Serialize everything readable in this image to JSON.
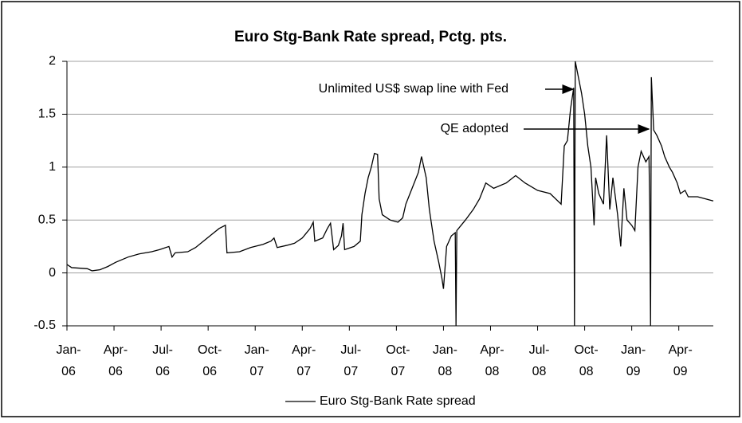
{
  "chart_data": {
    "type": "line",
    "title": "Euro Stg-Bank Rate spread, Pctg. pts.",
    "x": [
      0,
      0.3,
      1.3,
      1.6,
      2.1,
      2.6,
      3.1,
      3.9,
      4.6,
      5.4,
      5.9,
      6.5,
      6.7,
      6.9,
      7.7,
      8.2,
      8.7,
      9.2,
      9.7,
      10.1,
      10.2,
      11.0,
      11.7,
      12.5,
      13.0,
      13.2,
      13.4,
      14.0,
      14.5,
      15.0,
      15.5,
      15.7,
      15.8,
      16.3,
      16.6,
      16.8,
      17.0,
      17.3,
      17.5,
      17.6,
      17.7,
      18.3,
      18.7,
      18.8,
      19.0,
      19.2,
      19.4,
      19.6,
      19.8,
      19.9,
      20.1,
      20.6,
      21.1,
      21.4,
      21.6,
      22.0,
      22.4,
      22.6,
      22.9,
      23.1,
      23.4,
      23.7,
      23.9,
      24.0,
      24.2,
      24.5,
      24.75,
      24.8,
      24.85,
      25.4,
      25.9,
      26.3,
      26.7,
      27.2,
      28.0,
      28.6,
      29.2,
      30.0,
      30.8,
      31.5,
      31.7,
      31.9,
      32.1,
      32.3,
      32.35,
      32.4,
      32.6,
      32.8,
      33.0,
      33.2,
      33.4,
      33.6,
      33.7,
      33.9,
      34.2,
      34.4,
      34.6,
      34.8,
      35.1,
      35.3,
      35.5,
      35.7,
      36.0,
      36.2,
      36.4,
      36.6,
      36.9,
      37.1,
      37.15,
      37.2,
      37.25,
      37.4,
      37.6,
      37.9,
      38.1,
      38.4,
      38.6,
      38.9,
      39.1,
      39.4,
      39.6,
      40.2,
      40.7,
      41.2
    ],
    "series": [
      {
        "name": "Euro Stg-Bank Rate spread",
        "color": "#000000",
        "values": [
          0.08,
          0.05,
          0.04,
          0.02,
          0.03,
          0.06,
          0.1,
          0.15,
          0.18,
          0.2,
          0.22,
          0.25,
          0.15,
          0.19,
          0.2,
          0.24,
          0.3,
          0.36,
          0.42,
          0.45,
          0.19,
          0.2,
          0.24,
          0.27,
          0.3,
          0.33,
          0.24,
          0.26,
          0.28,
          0.33,
          0.42,
          0.48,
          0.3,
          0.33,
          0.42,
          0.47,
          0.22,
          0.26,
          0.35,
          0.47,
          0.22,
          0.25,
          0.3,
          0.55,
          0.75,
          0.9,
          1.0,
          1.13,
          1.12,
          0.7,
          0.55,
          0.5,
          0.48,
          0.52,
          0.65,
          0.8,
          0.95,
          1.1,
          0.9,
          0.6,
          0.3,
          0.1,
          -0.05,
          -0.15,
          0.25,
          0.35,
          0.38,
          -0.5,
          0.4,
          0.5,
          0.6,
          0.7,
          0.85,
          0.8,
          0.85,
          0.92,
          0.85,
          0.78,
          0.75,
          0.65,
          1.2,
          1.25,
          1.55,
          1.75,
          -0.5,
          2.0,
          1.85,
          1.7,
          1.5,
          1.2,
          1.0,
          0.45,
          0.9,
          0.75,
          0.65,
          1.3,
          0.6,
          0.9,
          0.55,
          0.25,
          0.8,
          0.5,
          0.45,
          0.4,
          1.0,
          1.15,
          1.05,
          1.1,
          0.6,
          -0.5,
          1.85,
          1.35,
          1.3,
          1.2,
          1.1,
          1.0,
          0.95,
          0.85,
          0.75,
          0.78,
          0.72,
          0.72,
          0.7,
          0.68
        ]
      }
    ],
    "xlim": [
      0,
      41.2
    ],
    "xticks": [
      {
        "value": 0,
        "label": "Jan-\n06"
      },
      {
        "value": 3,
        "label": "Apr-\n06"
      },
      {
        "value": 6,
        "label": "Jul-\n06"
      },
      {
        "value": 9,
        "label": "Oct-\n06"
      },
      {
        "value": 12,
        "label": "Jan-\n07"
      },
      {
        "value": 15,
        "label": "Apr-\n07"
      },
      {
        "value": 18,
        "label": "Jul-\n07"
      },
      {
        "value": 21,
        "label": "Oct-\n07"
      },
      {
        "value": 24,
        "label": "Jan-\n08"
      },
      {
        "value": 27,
        "label": "Apr-\n08"
      },
      {
        "value": 30,
        "label": "Jul-\n08"
      },
      {
        "value": 33,
        "label": "Oct-\n08"
      },
      {
        "value": 36,
        "label": "Jan-\n09"
      },
      {
        "value": 39,
        "label": "Apr-\n09"
      }
    ],
    "ylim": [
      -0.5,
      2
    ],
    "yticks": [
      -0.5,
      0,
      0.5,
      1,
      1.5,
      2
    ],
    "grid": true,
    "legend": "bottom",
    "annotations": [
      "Unlimited US$ swap line with Fed",
      "QE adopted"
    ]
  }
}
